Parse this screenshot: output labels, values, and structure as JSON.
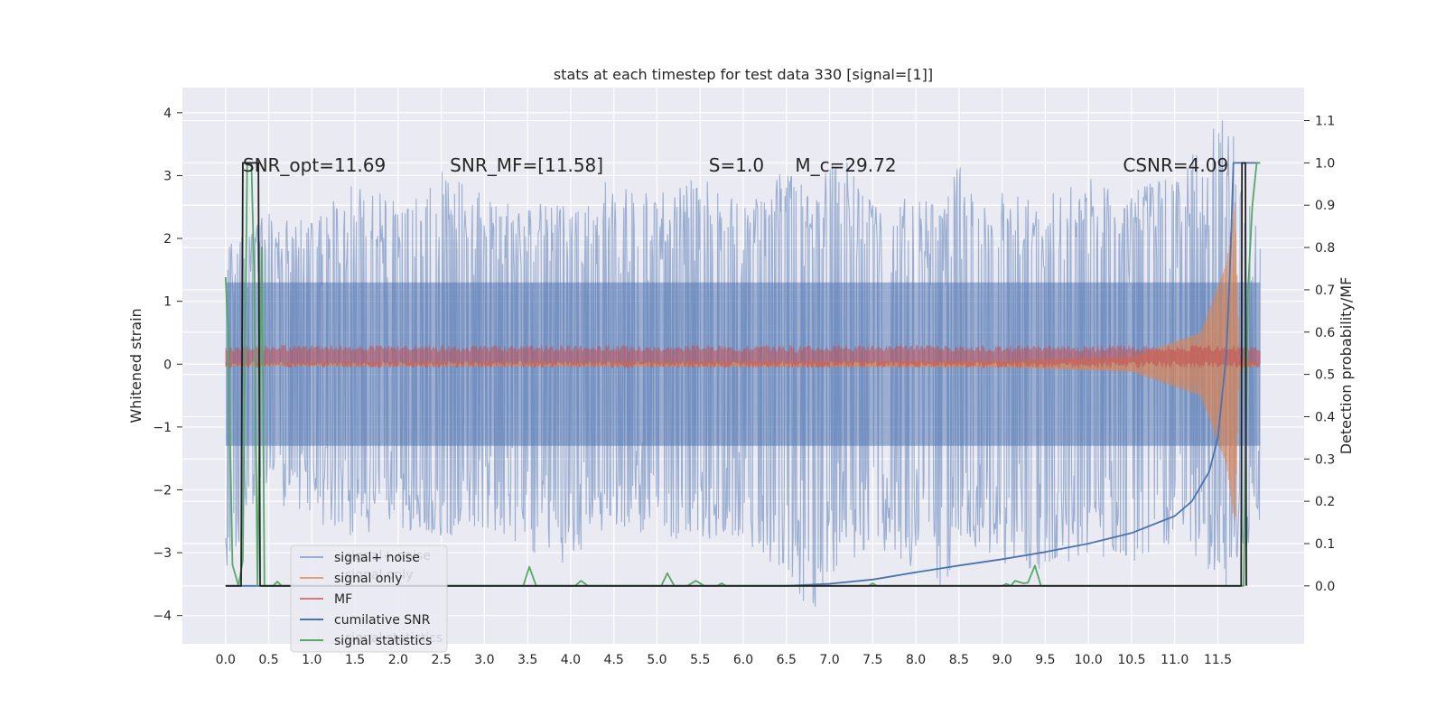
{
  "chart_data": {
    "type": "line",
    "title": "stats at each timestep for test data 330 [signal=[1]]",
    "xlabel": "",
    "ylabel": "Whitened strain",
    "y2label": "Detection probability/MF",
    "xlim": [
      -0.5,
      12.5
    ],
    "ylim": [
      -4.45,
      4.4
    ],
    "y2lim": [
      -0.137,
      1.178
    ],
    "xticks": [
      0.0,
      0.5,
      1.0,
      1.5,
      2.0,
      2.5,
      3.0,
      3.5,
      4.0,
      4.5,
      5.0,
      5.5,
      6.0,
      6.5,
      7.0,
      7.5,
      8.0,
      8.5,
      9.0,
      9.5,
      10.0,
      10.5,
      11.0,
      11.5
    ],
    "xtick_labels": [
      "0.0",
      "0.5",
      "1.0",
      "1.5",
      "2.0",
      "2.5",
      "3.0",
      "3.5",
      "4.0",
      "4.5",
      "5.0",
      "5.5",
      "6.0",
      "6.5",
      "7.0",
      "7.5",
      "8.0",
      "8.5",
      "9.0",
      "9.5",
      "10.0",
      "10.5",
      "11.0",
      "11.5"
    ],
    "yticks": [
      -4,
      -3,
      -2,
      -1,
      0,
      1,
      2,
      3,
      4
    ],
    "ytick_labels": [
      "−4",
      "−3",
      "−2",
      "−1",
      "0",
      "1",
      "2",
      "3",
      "4"
    ],
    "y2ticks": [
      0.0,
      0.1,
      0.2,
      0.3,
      0.4,
      0.5,
      0.6,
      0.7,
      0.8,
      0.9,
      1.0,
      1.1
    ],
    "y2tick_labels": [
      "0.0",
      "0.1",
      "0.2",
      "0.3",
      "0.4",
      "0.5",
      "0.6",
      "0.7",
      "0.8",
      "0.9",
      "1.0",
      "1.1"
    ],
    "grid": true,
    "legend_position": "lower-left",
    "annotations": [
      {
        "text": "SNR_opt=11.69",
        "x": 0.2,
        "y": 3.15
      },
      {
        "text": "SNR_MF=[11.58]",
        "x": 2.6,
        "y": 3.15
      },
      {
        "text": "S=1.0",
        "x": 5.6,
        "y": 3.15
      },
      {
        "text": "M_c=29.72",
        "x": 6.6,
        "y": 3.15
      },
      {
        "text": "CSNR=4.09",
        "x": 10.4,
        "y": 3.15
      }
    ],
    "series": [
      {
        "name": "signal+ noise",
        "axis": "left",
        "color": "#4c72b0",
        "style": "noise-band",
        "x_range": [
          0.0,
          11.99
        ],
        "envelope_points": [
          [
            0.0,
            2.0,
            -3.3
          ],
          [
            0.5,
            2.4,
            -2.3
          ],
          [
            1.0,
            2.3,
            -2.5
          ],
          [
            1.5,
            2.9,
            -2.8
          ],
          [
            2.0,
            2.6,
            -2.6
          ],
          [
            2.5,
            3.1,
            -2.8
          ],
          [
            3.0,
            2.7,
            -2.6
          ],
          [
            3.5,
            2.6,
            -3.0
          ],
          [
            4.0,
            2.5,
            -3.2
          ],
          [
            4.5,
            3.0,
            -2.6
          ],
          [
            5.0,
            2.7,
            -2.8
          ],
          [
            5.5,
            3.0,
            -2.8
          ],
          [
            6.0,
            2.6,
            -2.8
          ],
          [
            6.5,
            3.1,
            -3.4
          ],
          [
            6.85,
            2.6,
            -4.1
          ],
          [
            7.0,
            3.5,
            -3.4
          ],
          [
            7.5,
            2.8,
            -2.9
          ],
          [
            8.0,
            2.6,
            -3.3
          ],
          [
            8.35,
            2.7,
            -3.7
          ],
          [
            8.5,
            3.3,
            -2.8
          ],
          [
            9.0,
            2.8,
            -3.2
          ],
          [
            9.5,
            2.7,
            -3.3
          ],
          [
            10.0,
            3.0,
            -3.0
          ],
          [
            10.5,
            2.8,
            -3.3
          ],
          [
            11.0,
            3.0,
            -2.8
          ],
          [
            11.6,
            4.0,
            -3.6
          ],
          [
            11.99,
            2.3,
            -2.6
          ]
        ]
      },
      {
        "name": "signal only",
        "axis": "left",
        "color": "#dd8452",
        "style": "chirp",
        "x_range": [
          0.0,
          11.99
        ],
        "amplitude_points": [
          [
            0.0,
            0.02
          ],
          [
            9.0,
            0.05
          ],
          [
            10.5,
            0.12
          ],
          [
            11.3,
            0.5
          ],
          [
            11.6,
            1.6
          ],
          [
            11.7,
            2.6
          ],
          [
            11.75,
            0.1
          ],
          [
            11.99,
            0.0
          ]
        ]
      },
      {
        "name": "MF",
        "axis": "left",
        "color": "#c44e52",
        "style": "band",
        "x_range": [
          0.0,
          11.99
        ],
        "center": 0.12,
        "half_width": 0.12
      },
      {
        "name": "cumilative SNR",
        "axis": "right",
        "color": "#4c72b0",
        "style": "line",
        "points": [
          [
            0.0,
            0.0
          ],
          [
            6.5,
            0.0
          ],
          [
            7.0,
            0.005
          ],
          [
            7.5,
            0.015
          ],
          [
            8.0,
            0.032
          ],
          [
            8.5,
            0.048
          ],
          [
            9.0,
            0.063
          ],
          [
            9.5,
            0.08
          ],
          [
            10.0,
            0.1
          ],
          [
            10.5,
            0.125
          ],
          [
            11.0,
            0.165
          ],
          [
            11.2,
            0.2
          ],
          [
            11.4,
            0.27
          ],
          [
            11.5,
            0.35
          ],
          [
            11.6,
            0.55
          ],
          [
            11.65,
            0.8
          ],
          [
            11.68,
            1.0
          ],
          [
            11.99,
            1.0
          ]
        ]
      },
      {
        "name": "signal statistics",
        "axis": "right",
        "color": "#55a868",
        "style": "line",
        "points": [
          [
            0.0,
            0.73
          ],
          [
            0.03,
            0.6
          ],
          [
            0.08,
            0.05
          ],
          [
            0.15,
            0.0
          ],
          [
            0.2,
            0.06
          ],
          [
            0.25,
            1.0
          ],
          [
            0.3,
            1.0
          ],
          [
            0.33,
            0.75
          ],
          [
            0.37,
            0.0
          ],
          [
            0.42,
            0.8
          ],
          [
            0.45,
            0.0
          ],
          [
            0.55,
            0.0
          ],
          [
            0.6,
            0.01
          ],
          [
            0.65,
            0.0
          ],
          [
            3.45,
            0.0
          ],
          [
            3.52,
            0.045
          ],
          [
            3.6,
            0.0
          ],
          [
            4.05,
            0.0
          ],
          [
            4.12,
            0.012
          ],
          [
            4.2,
            0.0
          ],
          [
            5.05,
            0.0
          ],
          [
            5.12,
            0.03
          ],
          [
            5.2,
            0.0
          ],
          [
            5.35,
            0.0
          ],
          [
            5.45,
            0.012
          ],
          [
            5.55,
            0.0
          ],
          [
            5.7,
            0.0
          ],
          [
            5.75,
            0.006
          ],
          [
            5.8,
            0.0
          ],
          [
            7.45,
            0.0
          ],
          [
            7.5,
            0.006
          ],
          [
            7.55,
            0.0
          ],
          [
            9.0,
            0.0
          ],
          [
            9.05,
            0.005
          ],
          [
            9.1,
            0.0
          ],
          [
            9.15,
            0.012
          ],
          [
            9.25,
            0.006
          ],
          [
            9.3,
            0.008
          ],
          [
            9.38,
            0.048
          ],
          [
            9.45,
            0.0
          ],
          [
            11.8,
            0.0
          ],
          [
            11.85,
            0.7
          ],
          [
            11.9,
            0.9
          ],
          [
            11.95,
            1.0
          ],
          [
            11.99,
            1.0
          ]
        ]
      },
      {
        "name": "",
        "axis": "right",
        "color": "#222222",
        "style": "line",
        "points": [
          [
            0.0,
            0.0
          ],
          [
            0.18,
            0.0
          ],
          [
            0.2,
            1.0
          ],
          [
            0.38,
            1.0
          ],
          [
            0.4,
            0.0
          ],
          [
            11.77,
            0.0
          ],
          [
            11.78,
            1.0
          ],
          [
            11.82,
            1.0
          ],
          [
            11.83,
            0.0
          ]
        ]
      }
    ],
    "legend_entries": [
      {
        "label": "signal+ noise",
        "color": "#4c72b0",
        "alpha": 0.5
      },
      {
        "label": "signal only",
        "color": "#dd8452",
        "alpha": 0.7
      },
      {
        "label": "MF",
        "color": "#c44e52",
        "alpha": 0.7
      },
      {
        "label": "cumilative SNR",
        "color": "#4c72b0",
        "alpha": 1
      },
      {
        "label": "signal statistics",
        "color": "#55a868",
        "alpha": 1
      }
    ],
    "legend_ghost_entries": [
      "signal+ noise",
      "signal only",
      "signal statistics"
    ]
  }
}
